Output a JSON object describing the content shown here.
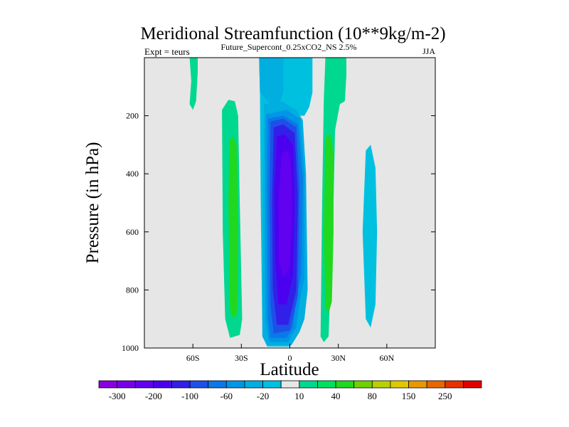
{
  "chart_data": {
    "type": "heatmap",
    "title": "Meridional Streamfunction (10**9kg/m-2)",
    "subtitle_left": "Expt = teurs",
    "subtitle_center": "Future_Supercont_0.25xCO2_NS 2.5%",
    "subtitle_right": "JJA",
    "xlabel": "Latitude",
    "ylabel": "Pressure (in hPa)",
    "xlim": [
      -90,
      90
    ],
    "ylim": [
      1000,
      0
    ],
    "y_reversed": true,
    "grid": false,
    "xticks": [
      {
        "value": -60,
        "label": "60S"
      },
      {
        "value": -30,
        "label": "30S"
      },
      {
        "value": 0,
        "label": "0"
      },
      {
        "value": 30,
        "label": "30N"
      },
      {
        "value": 60,
        "label": "60N"
      }
    ],
    "yticks": [
      {
        "value": 200,
        "label": "200"
      },
      {
        "value": 400,
        "label": "400"
      },
      {
        "value": 600,
        "label": "600"
      },
      {
        "value": 800,
        "label": "800"
      },
      {
        "value": 1000,
        "label": "1000"
      }
    ],
    "background_color": "#e6e6e6",
    "contour_levels": [
      -300,
      -250,
      -200,
      -150,
      -100,
      -80,
      -60,
      -40,
      -20,
      -10,
      10,
      20,
      40,
      60,
      80,
      100,
      150,
      200,
      250,
      300
    ],
    "colorbar": {
      "colors": [
        "#8a00e0",
        "#7800e8",
        "#6200f0",
        "#4c00f0",
        "#3220e8",
        "#1e50e8",
        "#0a78e8",
        "#0096e6",
        "#00aee0",
        "#00c0e0",
        "#e6e6e6",
        "#00d890",
        "#00e060",
        "#20d820",
        "#70d000",
        "#b8d000",
        "#e0c800",
        "#e89800",
        "#e86800",
        "#e83000",
        "#e00000"
      ],
      "labels": [
        {
          "after_level": 0,
          "label": "-300"
        },
        {
          "after_level": 2,
          "label": "-200"
        },
        {
          "after_level": 4,
          "label": "-100"
        },
        {
          "after_level": 6,
          "label": "-60"
        },
        {
          "after_level": 8,
          "label": "-20"
        },
        {
          "after_level": 10,
          "label": "10"
        },
        {
          "after_level": 12,
          "label": "40"
        },
        {
          "after_level": 14,
          "label": "80"
        },
        {
          "after_level": 16,
          "label": "150"
        },
        {
          "after_level": 18,
          "label": "250"
        }
      ]
    },
    "regions": [
      {
        "name": "Southern Hadley cell (negative)",
        "color": "#00c0e0",
        "points": [
          [
            -19,
            0
          ],
          [
            2,
            0
          ],
          [
            2,
            50
          ],
          [
            5,
            120
          ],
          [
            6,
            400
          ],
          [
            5,
            800
          ],
          [
            6,
            930
          ],
          [
            0,
            995
          ],
          [
            -14,
            995
          ],
          [
            -17,
            960
          ],
          [
            -18,
            500
          ],
          [
            -18.5,
            120
          ]
        ]
      },
      {
        "name": "Northern upper branch (negative)",
        "color": "#00c0e0",
        "points": [
          [
            2,
            0
          ],
          [
            14,
            0
          ],
          [
            14,
            120
          ],
          [
            12,
            170
          ],
          [
            9,
            200
          ],
          [
            5,
            200
          ],
          [
            2,
            150
          ]
        ]
      },
      {
        "name": "Upper -20 band",
        "color": "#00aee0",
        "points": [
          [
            -19,
            0
          ],
          [
            -4,
            0
          ],
          [
            -4,
            120
          ],
          [
            -6,
            150
          ],
          [
            -12,
            160
          ],
          [
            -18.5,
            120
          ]
        ]
      },
      {
        "name": "Negative cell -20",
        "color": "#00aee0",
        "points": [
          [
            -16,
            160
          ],
          [
            -5,
            150
          ],
          [
            4,
            180
          ],
          [
            8,
            215
          ],
          [
            10,
            400
          ],
          [
            11,
            800
          ],
          [
            9,
            900
          ],
          [
            6,
            945
          ],
          [
            1,
            990
          ],
          [
            -14,
            990
          ],
          [
            -17,
            960
          ],
          [
            -16.5,
            500
          ]
        ]
      },
      {
        "name": "Negative cell -40",
        "color": "#0096e6",
        "points": [
          [
            -15,
            195
          ],
          [
            -2,
            180
          ],
          [
            6,
            210
          ],
          [
            9,
            400
          ],
          [
            9,
            760
          ],
          [
            6,
            840
          ],
          [
            4,
            930
          ],
          [
            -1,
            980
          ],
          [
            -13,
            980
          ],
          [
            -15,
            900
          ],
          [
            -15.3,
            500
          ]
        ]
      },
      {
        "name": "Negative cell -60",
        "color": "#0a78e8",
        "points": [
          [
            -13.5,
            210
          ],
          [
            -4,
            200
          ],
          [
            5,
            230
          ],
          [
            8,
            420
          ],
          [
            7,
            750
          ],
          [
            4,
            830
          ],
          [
            2,
            930
          ],
          [
            -2,
            965
          ],
          [
            -12,
            965
          ],
          [
            -13.5,
            900
          ],
          [
            -14,
            500
          ]
        ]
      },
      {
        "name": "Negative cell -80",
        "color": "#1e50e8",
        "points": [
          [
            -12,
            220
          ],
          [
            -4,
            210
          ],
          [
            4,
            240
          ],
          [
            6,
            450
          ],
          [
            5,
            820
          ],
          [
            0,
            940
          ],
          [
            -10,
            950
          ],
          [
            -12,
            850
          ],
          [
            -12.6,
            500
          ]
        ]
      },
      {
        "name": "Negative cell -100",
        "color": "#3220e8",
        "points": [
          [
            -10,
            240
          ],
          [
            -4,
            230
          ],
          [
            3,
            260
          ],
          [
            5,
            480
          ],
          [
            4,
            800
          ],
          [
            -1,
            920
          ],
          [
            -8,
            920
          ],
          [
            -10.5,
            800
          ],
          [
            -11,
            500
          ]
        ]
      },
      {
        "name": "Negative cell -150",
        "color": "#4c00f0",
        "points": [
          [
            -8,
            270
          ],
          [
            -3,
            265
          ],
          [
            2,
            300
          ],
          [
            3,
            500
          ],
          [
            2,
            750
          ],
          [
            -2,
            850
          ],
          [
            -7,
            850
          ],
          [
            -9,
            700
          ],
          [
            -9.5,
            450
          ]
        ]
      },
      {
        "name": "Negative cell -200",
        "color": "#6200f0",
        "points": [
          [
            -5,
            330
          ],
          [
            -1,
            320
          ],
          [
            1,
            380
          ],
          [
            1.5,
            550
          ],
          [
            0,
            720
          ],
          [
            -4,
            760
          ],
          [
            -6.5,
            700
          ],
          [
            -7,
            500
          ]
        ]
      },
      {
        "name": "SH subtropical positive",
        "color": "#00d890",
        "points": [
          [
            -42,
            180
          ],
          [
            -38,
            145
          ],
          [
            -34,
            150
          ],
          [
            -32,
            200
          ],
          [
            -31,
            500
          ],
          [
            -29.5,
            900
          ],
          [
            -31,
            955
          ],
          [
            -37,
            965
          ],
          [
            -40,
            900
          ],
          [
            -41.5,
            600
          ]
        ]
      },
      {
        "name": "SH subtropical positive core",
        "color": "#20d820",
        "points": [
          [
            -37.5,
            290
          ],
          [
            -35,
            270
          ],
          [
            -33,
            300
          ],
          [
            -32,
            600
          ],
          [
            -32.5,
            880
          ],
          [
            -35,
            900
          ],
          [
            -37,
            870
          ],
          [
            -38,
            500
          ]
        ]
      },
      {
        "name": "SH polar positive",
        "color": "#00d890",
        "points": [
          [
            -62,
            0
          ],
          [
            -57,
            0
          ],
          [
            -57,
            50
          ],
          [
            -58,
            150
          ],
          [
            -60,
            180
          ],
          [
            -62,
            160
          ],
          [
            -61,
            80
          ]
        ]
      },
      {
        "name": "NH subtropical positive",
        "color": "#00d890",
        "points": [
          [
            22,
            0
          ],
          [
            35,
            0
          ],
          [
            35,
            60
          ],
          [
            34,
            150
          ],
          [
            31,
            160
          ],
          [
            28,
            250
          ],
          [
            27,
            500
          ],
          [
            25,
            800
          ],
          [
            24,
            960
          ],
          [
            21,
            980
          ],
          [
            19,
            960
          ],
          [
            20,
            500
          ],
          [
            21,
            150
          ]
        ]
      },
      {
        "name": "NH subtropical positive core",
        "color": "#20d820",
        "points": [
          [
            22,
            280
          ],
          [
            25,
            260
          ],
          [
            27,
            330
          ],
          [
            27,
            600
          ],
          [
            26,
            840
          ],
          [
            24,
            880
          ],
          [
            22,
            860
          ],
          [
            21,
            600
          ]
        ]
      },
      {
        "name": "NH mid-latitude negative",
        "color": "#00c0e0",
        "points": [
          [
            47,
            320
          ],
          [
            50,
            300
          ],
          [
            53,
            380
          ],
          [
            54,
            600
          ],
          [
            53,
            850
          ],
          [
            50,
            930
          ],
          [
            47,
            900
          ],
          [
            45,
            600
          ]
        ]
      }
    ]
  }
}
